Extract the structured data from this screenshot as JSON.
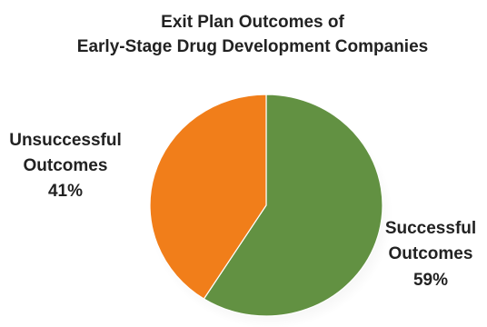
{
  "chart_data": {
    "type": "pie",
    "title_lines": [
      "Exit Plan Outcomes  of",
      "Early-Stage Drug Development Companies"
    ],
    "slices": [
      {
        "label_lines": [
          "Successful",
          "Outcomes"
        ],
        "value": 59,
        "value_label": "59%",
        "color": "#629142"
      },
      {
        "label_lines": [
          "Unsuccessful",
          "Outcomes"
        ],
        "value": 41,
        "value_label": "41%",
        "color": "#f17e1a"
      }
    ],
    "start_angle_deg": 0,
    "direction": "clockwise"
  }
}
